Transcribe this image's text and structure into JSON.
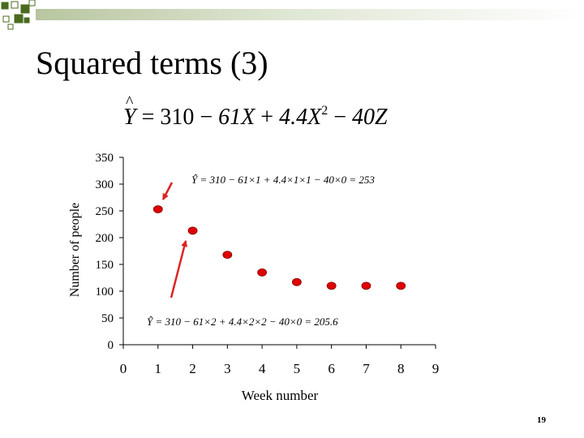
{
  "slide": {
    "title": "Squared terms (3)",
    "formula": {
      "lhs": "Y",
      "eq": "=",
      "c0": "310",
      "op1": "−",
      "c1": "61X",
      "op2": "+",
      "c2": "4.4X",
      "sup": "2",
      "op3": "−",
      "c3": "40Z"
    },
    "page_number": "19",
    "arrow_color": "#e02020",
    "marker_color": "#e00000",
    "header_squares_color": "#4a6b1e"
  },
  "chart_data": {
    "type": "scatter",
    "xlabel": "Week number",
    "ylabel": "Number of people",
    "xlim": [
      0,
      9
    ],
    "ylim": [
      0,
      350
    ],
    "xticks": [
      "0",
      "1",
      "2",
      "3",
      "4",
      "5",
      "6",
      "7",
      "8",
      "9"
    ],
    "yticks": [
      "0",
      "50",
      "100",
      "150",
      "200",
      "250",
      "300",
      "350"
    ],
    "grid": false,
    "x": [
      1,
      2,
      3,
      4,
      5,
      6,
      7,
      8
    ],
    "y": [
      253,
      213,
      168,
      135,
      117,
      110,
      110,
      110
    ],
    "annotations": [
      {
        "text": "Ŷ = 310 − 61×1 + 4.4×1×1 − 40×0 = 253",
        "x": 1,
        "y": 253
      },
      {
        "text": "Ŷ = 310 − 61×2 + 4.4×2×2 − 40×0 = 205.6",
        "x": 2,
        "y": 213
      }
    ]
  }
}
